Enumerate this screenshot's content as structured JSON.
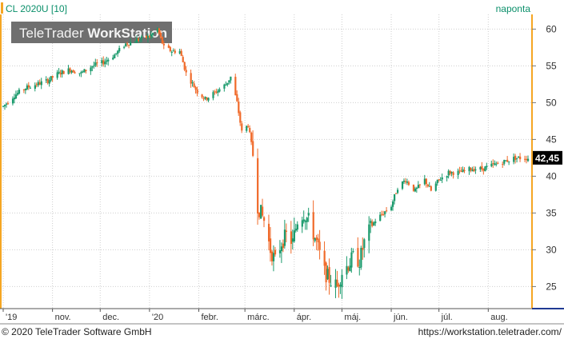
{
  "header": {
    "symbol": "CL 2020U [10]",
    "interval": "naponta",
    "watermark_light": "TeleTrader ",
    "watermark_bold": "WorkStation"
  },
  "footer": {
    "copyright": "© 2020 TeleTrader Software GmbH",
    "url": "https://workstation.teletrader.com/"
  },
  "colors": {
    "up": "#1a9a6c",
    "down": "#f06a2a",
    "accent": "#f5a623",
    "axis_blue": "#1f3a93",
    "text_green": "#0a8f6a"
  },
  "chart_data": {
    "type": "candlestick",
    "title": "CL 2020U [10]",
    "ylim": [
      22,
      62
    ],
    "yticks": [
      25,
      30,
      35,
      40,
      45,
      50,
      55,
      60
    ],
    "ytick_labels": [
      "25",
      "30",
      "35",
      "40",
      "45",
      "50",
      "55",
      "60"
    ],
    "last_price": 42.45,
    "last_price_label": "42,45",
    "grid": true,
    "x_labels": [
      {
        "date": "2019-10-01",
        "label": "'19"
      },
      {
        "date": "2019-11-01",
        "label": "nov."
      },
      {
        "date": "2019-12-01",
        "label": "dec."
      },
      {
        "date": "2020-01-01",
        "label": "'20"
      },
      {
        "date": "2020-02-01",
        "label": "febr."
      },
      {
        "date": "2020-03-01",
        "label": "márc."
      },
      {
        "date": "2020-04-01",
        "label": "ápr."
      },
      {
        "date": "2020-05-01",
        "label": "máj."
      },
      {
        "date": "2020-06-01",
        "label": "jún."
      },
      {
        "date": "2020-07-01",
        "label": "júl."
      },
      {
        "date": "2020-08-01",
        "label": "aug."
      }
    ],
    "x_start": "2019-10-01",
    "x_end": "2020-08-26",
    "path": [
      [
        "2019-10-01",
        49.5
      ],
      [
        "2019-10-08",
        51.0
      ],
      [
        "2019-10-15",
        52.0
      ],
      [
        "2019-10-22",
        52.5
      ],
      [
        "2019-10-29",
        53.0
      ],
      [
        "2019-11-05",
        54.0
      ],
      [
        "2019-11-12",
        54.5
      ],
      [
        "2019-11-19",
        54.0
      ],
      [
        "2019-11-26",
        55.0
      ],
      [
        "2019-12-03",
        55.5
      ],
      [
        "2019-12-10",
        56.5
      ],
      [
        "2019-12-17",
        58.0
      ],
      [
        "2019-12-24",
        58.5
      ],
      [
        "2020-01-01",
        59.0
      ],
      [
        "2020-01-06",
        60.0
      ],
      [
        "2020-01-10",
        57.5
      ],
      [
        "2020-01-15",
        57.0
      ],
      [
        "2020-01-20",
        57.0
      ],
      [
        "2020-01-24",
        54.0
      ],
      [
        "2020-01-31",
        51.5
      ],
      [
        "2020-02-05",
        50.5
      ],
      [
        "2020-02-12",
        51.5
      ],
      [
        "2020-02-18",
        52.5
      ],
      [
        "2020-02-21",
        53.5
      ],
      [
        "2020-02-25",
        50.0
      ],
      [
        "2020-02-28",
        46.0
      ],
      [
        "2020-03-03",
        47.0
      ],
      [
        "2020-03-06",
        43.0
      ],
      [
        "2020-03-09",
        36.0
      ],
      [
        "2020-03-13",
        34.0
      ],
      [
        "2020-03-17",
        30.0
      ],
      [
        "2020-03-20",
        28.5
      ],
      [
        "2020-03-24",
        31.0
      ],
      [
        "2020-03-27",
        32.0
      ],
      [
        "2020-03-31",
        31.0
      ],
      [
        "2020-04-03",
        34.0
      ],
      [
        "2020-04-07",
        35.0
      ],
      [
        "2020-04-10",
        34.0
      ],
      [
        "2020-04-15",
        31.0
      ],
      [
        "2020-04-20",
        27.0
      ],
      [
        "2020-04-23",
        26.0
      ],
      [
        "2020-04-28",
        25.0
      ],
      [
        "2020-05-01",
        27.0
      ],
      [
        "2020-05-05",
        28.0
      ],
      [
        "2020-05-08",
        29.0
      ],
      [
        "2020-05-12",
        28.5
      ],
      [
        "2020-05-15",
        31.0
      ],
      [
        "2020-05-19",
        33.0
      ],
      [
        "2020-05-22",
        34.0
      ],
      [
        "2020-05-27",
        35.0
      ],
      [
        "2020-06-01",
        36.0
      ],
      [
        "2020-06-05",
        38.5
      ],
      [
        "2020-06-10",
        39.5
      ],
      [
        "2020-06-16",
        38.0
      ],
      [
        "2020-06-22",
        39.5
      ],
      [
        "2020-06-26",
        38.0
      ],
      [
        "2020-07-01",
        39.5
      ],
      [
        "2020-07-07",
        40.5
      ],
      [
        "2020-07-14",
        40.5
      ],
      [
        "2020-07-21",
        41.0
      ],
      [
        "2020-07-28",
        41.0
      ],
      [
        "2020-08-04",
        41.5
      ],
      [
        "2020-08-11",
        42.0
      ],
      [
        "2020-08-18",
        42.5
      ],
      [
        "2020-08-26",
        42.45
      ]
    ]
  }
}
